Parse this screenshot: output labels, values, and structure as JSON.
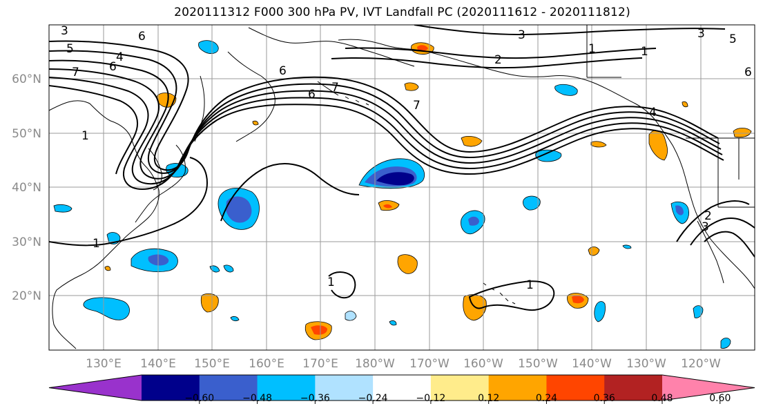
{
  "title": "2020111312 F000 300 hPa PV, IVT Landfall PC (2020111612 - 2020111812)",
  "lat_labels": [
    "60°N",
    "50°N",
    "40°N",
    "30°N",
    "20°N"
  ],
  "lon_labels": [
    "130°E",
    "140°E",
    "150°E",
    "160°E",
    "170°E",
    "180°W",
    "170°W",
    "160°W",
    "150°W",
    "140°W",
    "130°W",
    "120°W"
  ],
  "colorbar": {
    "ticks": [
      "−0.60",
      "−0.48",
      "−0.36",
      "−0.24",
      "−0.12",
      "0.12",
      "0.24",
      "0.36",
      "0.48",
      "0.60"
    ],
    "colors": [
      "#9932cc",
      "#00008b",
      "#3a5fcd",
      "#00bfff",
      "#b0e2ff",
      "#ffffff",
      "#ffec8b",
      "#ffa500",
      "#ff4500",
      "#b22222",
      "#ff82ab"
    ]
  },
  "contour_labels": [
    "3",
    "5",
    "6",
    "7",
    "6",
    "7",
    "6",
    "7",
    "3",
    "2",
    "1",
    "1",
    "3",
    "4",
    "6",
    "5",
    "1",
    "1",
    "1",
    "2",
    "3",
    "1",
    "6",
    "4"
  ],
  "colors": {
    "contour": "#000000",
    "grid": "#9a9a9a",
    "coast": "#000000"
  }
}
